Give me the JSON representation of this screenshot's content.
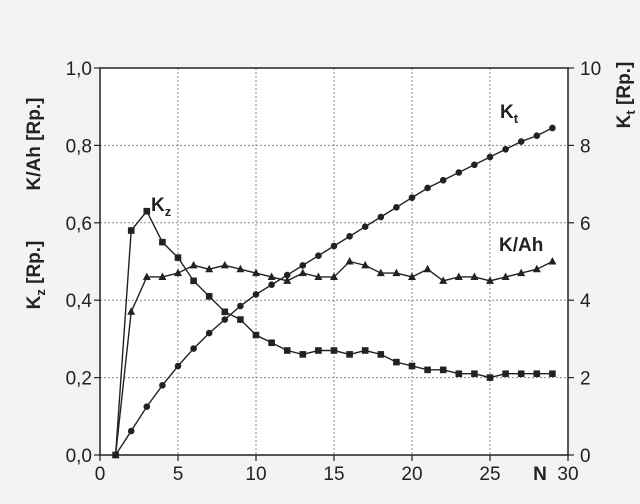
{
  "chart_data": {
    "type": "line",
    "xlabel": "N",
    "xlim": [
      0,
      30
    ],
    "xticks": [
      "0",
      "5",
      "10",
      "15",
      "20",
      "25",
      "30"
    ],
    "ylim_left": [
      0,
      1
    ],
    "yticks_left": [
      "0,0",
      "0,2",
      "0,4",
      "0,6",
      "0,8",
      "1,0"
    ],
    "ylim_right": [
      0,
      10
    ],
    "yticks_right": [
      "0",
      "2",
      "4",
      "6",
      "8",
      "10"
    ],
    "ylabel_left_top": "K/Ah [Rp.]",
    "ylabel_left_bottom": {
      "main": "K",
      "sub": "z",
      "unit": " [Rp.]"
    },
    "ylabel_right": {
      "main": "K",
      "sub": "t",
      "unit": " [Rp.]"
    },
    "grid": true,
    "series": [
      {
        "name": {
          "main": "K",
          "sub": "t"
        },
        "axis": "right",
        "marker": "circle",
        "x": [
          1,
          2,
          3,
          4,
          5,
          6,
          7,
          8,
          9,
          10,
          11,
          12,
          13,
          14,
          15,
          16,
          17,
          18,
          19,
          20,
          21,
          22,
          23,
          24,
          25,
          26,
          27,
          28,
          29
        ],
        "values": [
          0.0,
          0.62,
          1.25,
          1.8,
          2.3,
          2.75,
          3.15,
          3.5,
          3.85,
          4.15,
          4.4,
          4.65,
          4.9,
          5.15,
          5.4,
          5.65,
          5.9,
          6.15,
          6.4,
          6.65,
          6.9,
          7.1,
          7.3,
          7.5,
          7.7,
          7.9,
          8.1,
          8.25,
          8.45
        ]
      },
      {
        "name": {
          "main": "K",
          "sub": "z"
        },
        "axis": "left",
        "marker": "square",
        "x": [
          1,
          2,
          3,
          4,
          5,
          6,
          7,
          8,
          9,
          10,
          11,
          12,
          13,
          14,
          15,
          16,
          17,
          18,
          19,
          20,
          21,
          22,
          23,
          24,
          25,
          26,
          27,
          28,
          29
        ],
        "values": [
          0.0,
          0.58,
          0.63,
          0.55,
          0.51,
          0.45,
          0.41,
          0.37,
          0.35,
          0.31,
          0.29,
          0.27,
          0.26,
          0.27,
          0.27,
          0.26,
          0.27,
          0.26,
          0.24,
          0.23,
          0.22,
          0.22,
          0.21,
          0.21,
          0.2,
          0.21,
          0.21,
          0.21,
          0.21
        ]
      },
      {
        "name": "K/Ah",
        "axis": "left",
        "marker": "triangle",
        "x": [
          1,
          2,
          3,
          4,
          5,
          6,
          7,
          8,
          9,
          10,
          11,
          12,
          13,
          14,
          15,
          16,
          17,
          18,
          19,
          20,
          21,
          22,
          23,
          24,
          25,
          26,
          27,
          28,
          29
        ],
        "values": [
          0.0,
          0.37,
          0.46,
          0.46,
          0.47,
          0.49,
          0.48,
          0.49,
          0.48,
          0.47,
          0.46,
          0.45,
          0.47,
          0.46,
          0.46,
          0.5,
          0.49,
          0.47,
          0.47,
          0.46,
          0.48,
          0.45,
          0.46,
          0.46,
          0.45,
          0.46,
          0.47,
          0.48,
          0.5
        ]
      }
    ]
  }
}
